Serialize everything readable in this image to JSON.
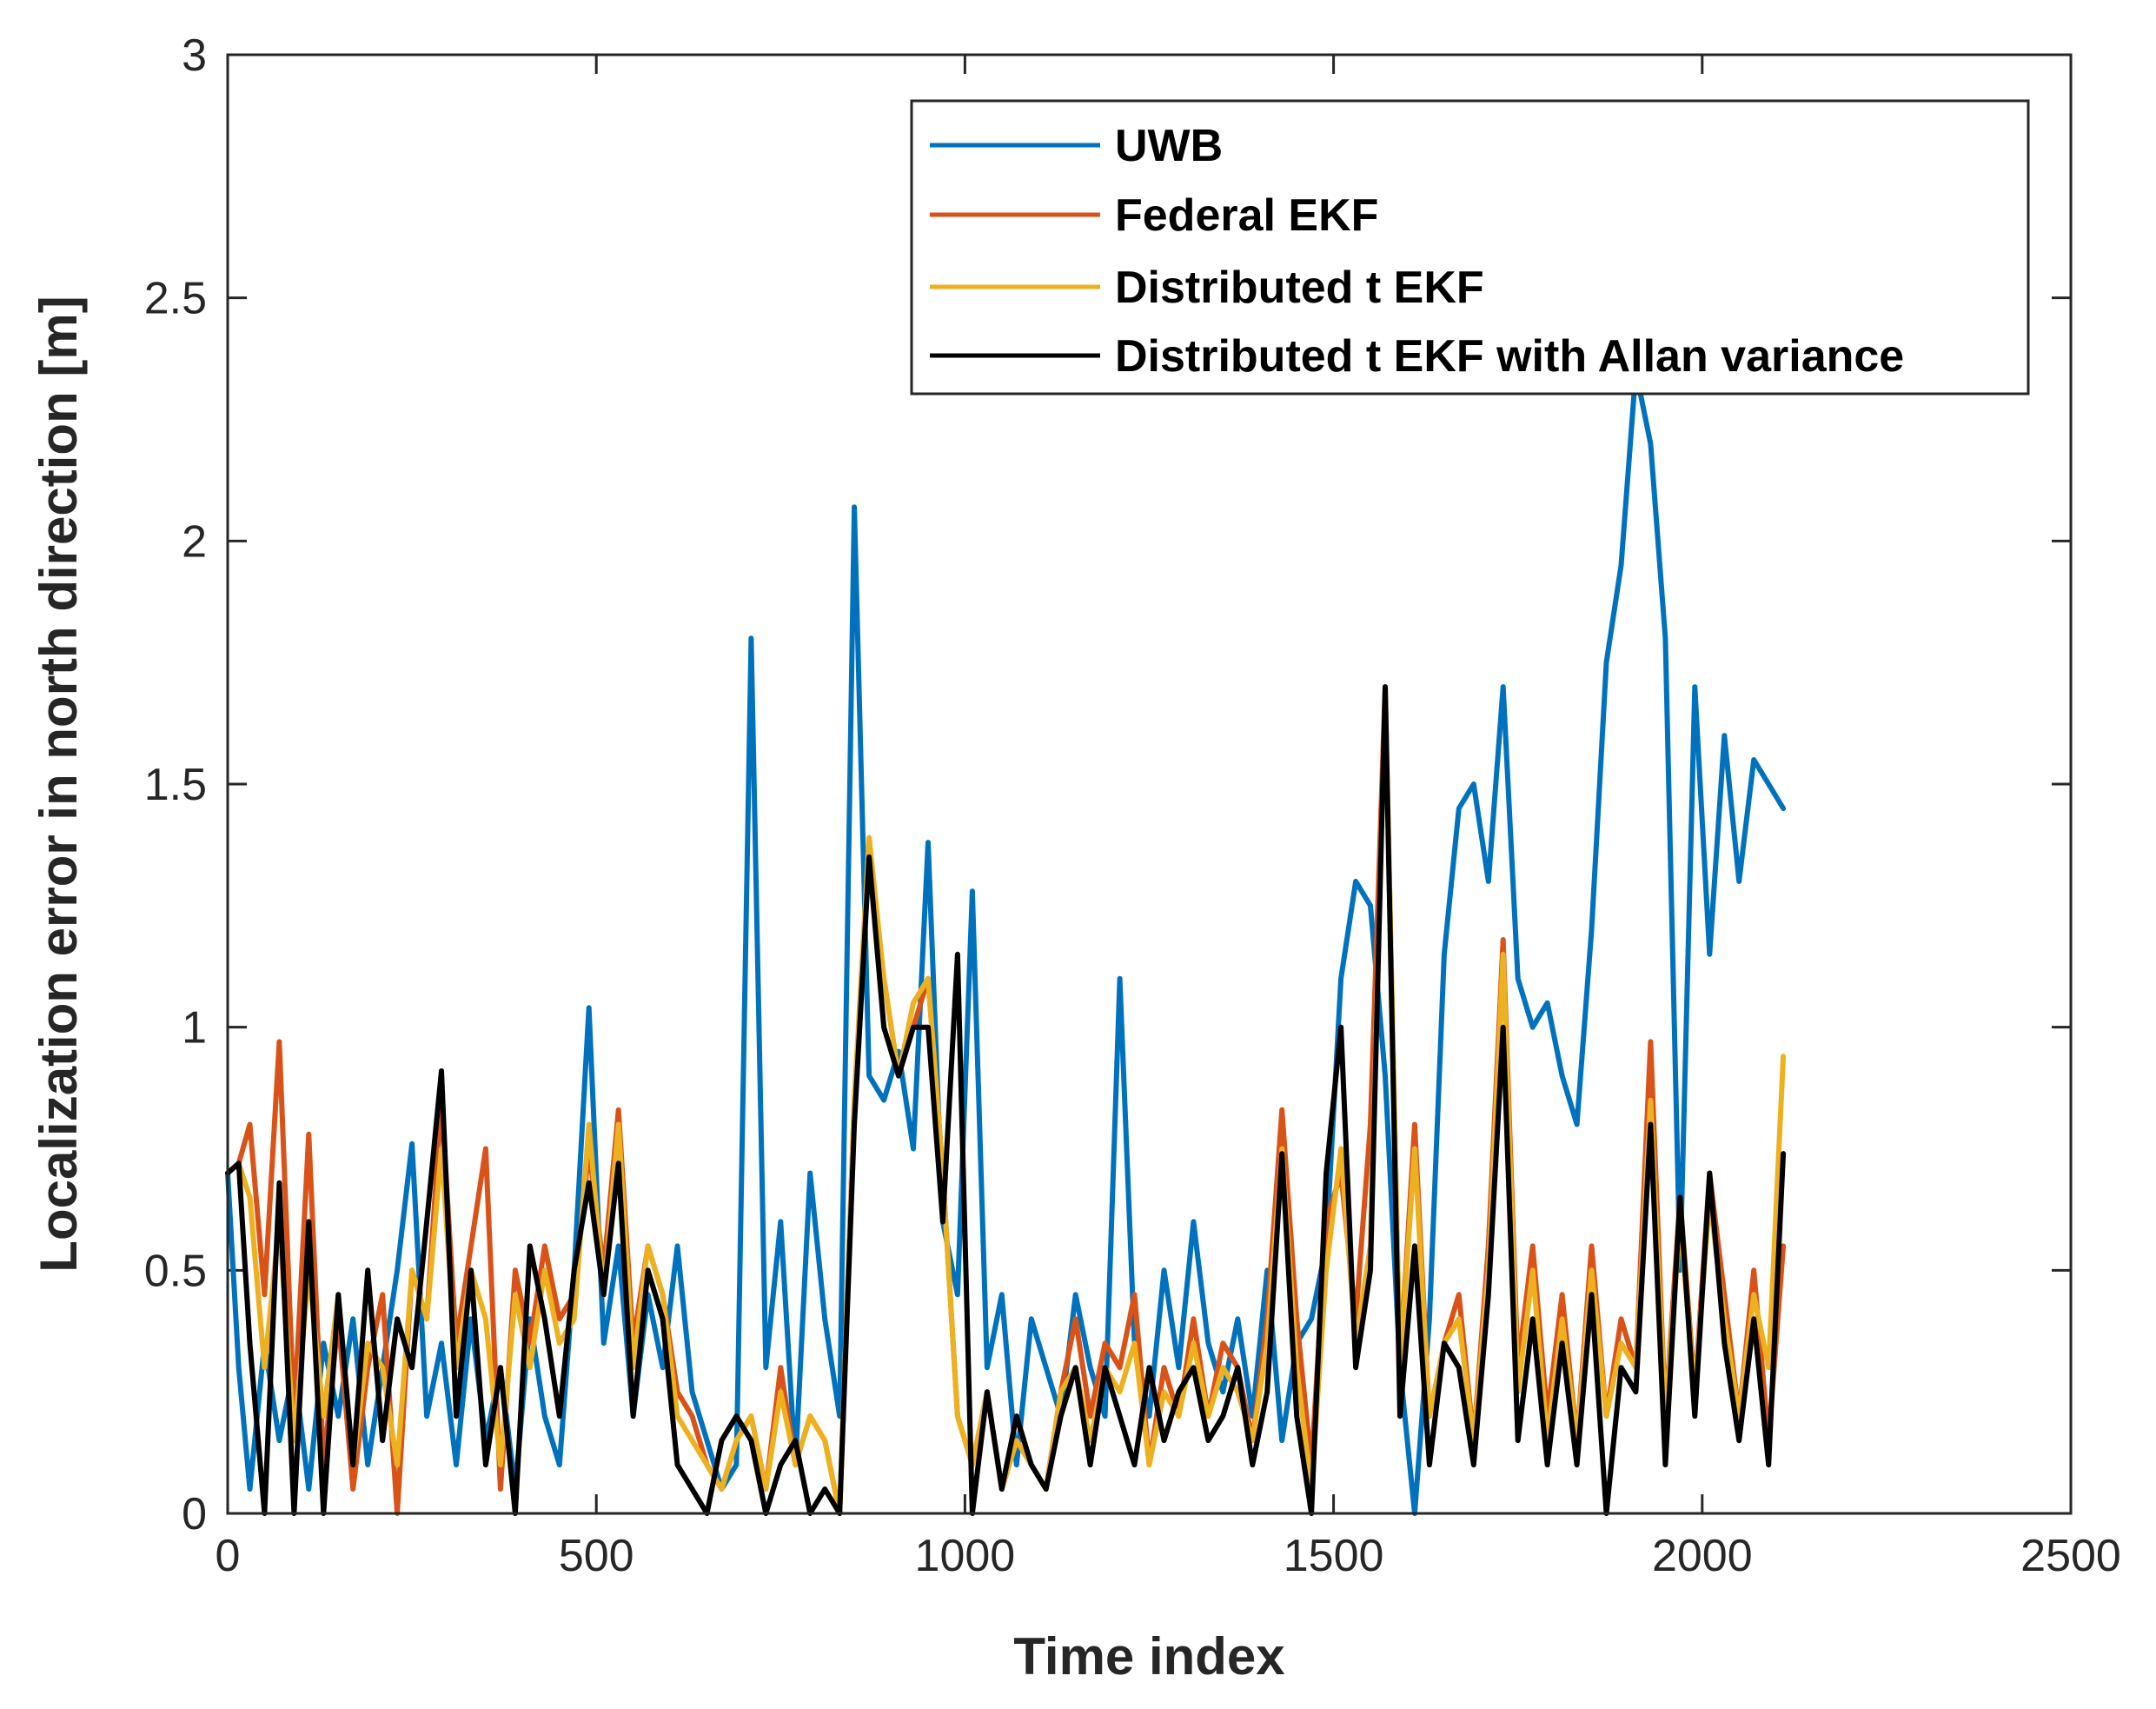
{
  "chart_data": {
    "type": "line",
    "title": "",
    "xlabel": "Time index",
    "ylabel": "Localization error in north direction [m]",
    "xlim": [
      0,
      2500
    ],
    "ylim": [
      0,
      3
    ],
    "xticks": [
      0,
      500,
      1000,
      1500,
      2000,
      2500
    ],
    "xtick_labels": [
      "0",
      "500",
      "1000",
      "1500",
      "2000",
      "2500"
    ],
    "yticks": [
      0,
      0.5,
      1,
      1.5,
      2,
      2.5,
      3
    ],
    "ytick_labels": [
      "0",
      "0.5",
      "1",
      "1.5",
      "2",
      "2.5",
      "3"
    ],
    "legend_position": "top-right",
    "x": [
      0,
      15,
      30,
      50,
      70,
      90,
      110,
      130,
      150,
      170,
      190,
      210,
      230,
      250,
      270,
      290,
      310,
      330,
      350,
      370,
      390,
      410,
      430,
      450,
      470,
      490,
      510,
      530,
      550,
      570,
      590,
      610,
      630,
      650,
      670,
      690,
      710,
      730,
      750,
      770,
      790,
      810,
      830,
      850,
      870,
      890,
      910,
      930,
      950,
      970,
      990,
      1010,
      1030,
      1050,
      1070,
      1090,
      1110,
      1130,
      1150,
      1170,
      1190,
      1210,
      1230,
      1250,
      1270,
      1290,
      1310,
      1330,
      1350,
      1370,
      1390,
      1410,
      1430,
      1450,
      1470,
      1490,
      1510,
      1530,
      1550,
      1570,
      1590,
      1610,
      1630,
      1650,
      1670,
      1690,
      1710,
      1730,
      1750,
      1770,
      1790,
      1810,
      1830,
      1850,
      1870,
      1890,
      1910,
      1930,
      1950,
      1970,
      1990,
      2010,
      2030,
      2050,
      2070,
      2090,
      2110
    ],
    "series": [
      {
        "name": "UWB",
        "color": "#0072BD",
        "values": [
          0.7,
          0.3,
          0.05,
          0.35,
          0.15,
          0.3,
          0.05,
          0.35,
          0.2,
          0.4,
          0.1,
          0.3,
          0.5,
          0.76,
          0.2,
          0.35,
          0.1,
          0.4,
          0.15,
          0.3,
          0.05,
          0.4,
          0.2,
          0.1,
          0.5,
          1.04,
          0.35,
          0.55,
          0.2,
          0.45,
          0.3,
          0.55,
          0.25,
          0.15,
          0.05,
          0.1,
          1.8,
          0.3,
          0.6,
          0.1,
          0.7,
          0.4,
          0.2,
          2.07,
          0.9,
          0.85,
          0.95,
          0.75,
          1.38,
          0.6,
          0.45,
          1.28,
          0.3,
          0.45,
          0.1,
          0.4,
          0.3,
          0.2,
          0.45,
          0.3,
          0.2,
          1.1,
          0.35,
          0.2,
          0.5,
          0.3,
          0.6,
          0.35,
          0.25,
          0.4,
          0.2,
          0.5,
          0.15,
          0.35,
          0.4,
          0.55,
          1.1,
          1.3,
          1.25,
          0.9,
          0.3,
          0.0,
          0.4,
          1.15,
          1.45,
          1.5,
          1.3,
          1.7,
          1.1,
          1.0,
          1.05,
          0.9,
          0.8,
          1.2,
          1.75,
          1.95,
          2.35,
          2.2,
          1.8,
          0.5,
          1.7,
          1.15,
          1.6,
          1.3,
          1.55,
          1.5,
          1.45
        ]
      },
      {
        "name": "Federal EKF",
        "color": "#D95319",
        "values": [
          0.7,
          0.72,
          0.8,
          0.45,
          0.97,
          0.2,
          0.78,
          0.1,
          0.4,
          0.05,
          0.3,
          0.45,
          0.0,
          0.5,
          0.4,
          0.85,
          0.35,
          0.55,
          0.75,
          0.05,
          0.5,
          0.35,
          0.55,
          0.4,
          0.45,
          0.75,
          0.5,
          0.83,
          0.35,
          0.55,
          0.45,
          0.25,
          0.2,
          0.1,
          0.05,
          0.15,
          0.2,
          0.05,
          0.3,
          0.1,
          0.2,
          0.15,
          0.0,
          0.85,
          1.35,
          1.1,
          0.9,
          1.0,
          1.1,
          0.7,
          0.2,
          0.1,
          0.25,
          0.05,
          0.15,
          0.1,
          0.05,
          0.25,
          0.4,
          0.2,
          0.35,
          0.3,
          0.45,
          0.1,
          0.3,
          0.2,
          0.4,
          0.2,
          0.35,
          0.3,
          0.15,
          0.4,
          0.83,
          0.4,
          0.1,
          0.6,
          0.7,
          0.4,
          0.8,
          1.7,
          0.3,
          0.8,
          0.2,
          0.35,
          0.45,
          0.15,
          0.55,
          1.18,
          0.3,
          0.55,
          0.2,
          0.45,
          0.15,
          0.55,
          0.2,
          0.4,
          0.3,
          0.97,
          0.2,
          0.65,
          0.25,
          0.7,
          0.45,
          0.2,
          0.5,
          0.15,
          0.55
        ]
      },
      {
        "name": "Distributed t EKF",
        "color": "#EDB120",
        "values": [
          0.7,
          0.72,
          0.65,
          0.3,
          0.6,
          0.15,
          0.5,
          0.2,
          0.45,
          0.1,
          0.35,
          0.3,
          0.1,
          0.5,
          0.4,
          0.75,
          0.3,
          0.5,
          0.4,
          0.1,
          0.45,
          0.3,
          0.5,
          0.35,
          0.4,
          0.8,
          0.45,
          0.8,
          0.3,
          0.55,
          0.45,
          0.2,
          0.15,
          0.1,
          0.05,
          0.15,
          0.2,
          0.05,
          0.25,
          0.1,
          0.2,
          0.15,
          0.0,
          0.85,
          1.39,
          1.1,
          0.9,
          1.05,
          1.1,
          0.7,
          0.2,
          0.1,
          0.25,
          0.05,
          0.15,
          0.1,
          0.05,
          0.25,
          0.3,
          0.15,
          0.3,
          0.25,
          0.35,
          0.1,
          0.25,
          0.2,
          0.35,
          0.2,
          0.3,
          0.25,
          0.15,
          0.35,
          0.75,
          0.3,
          0.05,
          0.5,
          0.75,
          0.35,
          0.55,
          1.7,
          0.3,
          0.75,
          0.2,
          0.35,
          0.4,
          0.15,
          0.5,
          1.15,
          0.25,
          0.5,
          0.15,
          0.4,
          0.15,
          0.5,
          0.2,
          0.35,
          0.3,
          0.85,
          0.2,
          0.6,
          0.25,
          0.65,
          0.4,
          0.2,
          0.45,
          0.3,
          0.94
        ]
      },
      {
        "name": "Distributed t EKF with Allan variance",
        "color": "#000000",
        "values": [
          0.7,
          0.72,
          0.35,
          0.0,
          0.68,
          0.0,
          0.6,
          0.0,
          0.45,
          0.1,
          0.5,
          0.15,
          0.4,
          0.3,
          0.6,
          0.91,
          0.2,
          0.5,
          0.1,
          0.3,
          0.0,
          0.55,
          0.4,
          0.2,
          0.5,
          0.68,
          0.45,
          0.72,
          0.2,
          0.5,
          0.4,
          0.1,
          0.05,
          0.0,
          0.15,
          0.2,
          0.15,
          0.0,
          0.1,
          0.15,
          0.0,
          0.05,
          0.0,
          0.8,
          1.35,
          1.0,
          0.9,
          1.0,
          1.0,
          0.6,
          1.15,
          0.0,
          0.25,
          0.05,
          0.2,
          0.1,
          0.05,
          0.2,
          0.3,
          0.1,
          0.3,
          0.2,
          0.1,
          0.3,
          0.15,
          0.25,
          0.3,
          0.15,
          0.2,
          0.3,
          0.1,
          0.25,
          0.74,
          0.2,
          0.0,
          0.7,
          1.0,
          0.3,
          0.5,
          1.7,
          0.2,
          0.55,
          0.1,
          0.35,
          0.3,
          0.1,
          0.45,
          1.0,
          0.15,
          0.4,
          0.1,
          0.35,
          0.1,
          0.45,
          0.0,
          0.3,
          0.25,
          0.8,
          0.1,
          0.65,
          0.2,
          0.7,
          0.35,
          0.15,
          0.4,
          0.1,
          0.74
        ]
      }
    ]
  }
}
